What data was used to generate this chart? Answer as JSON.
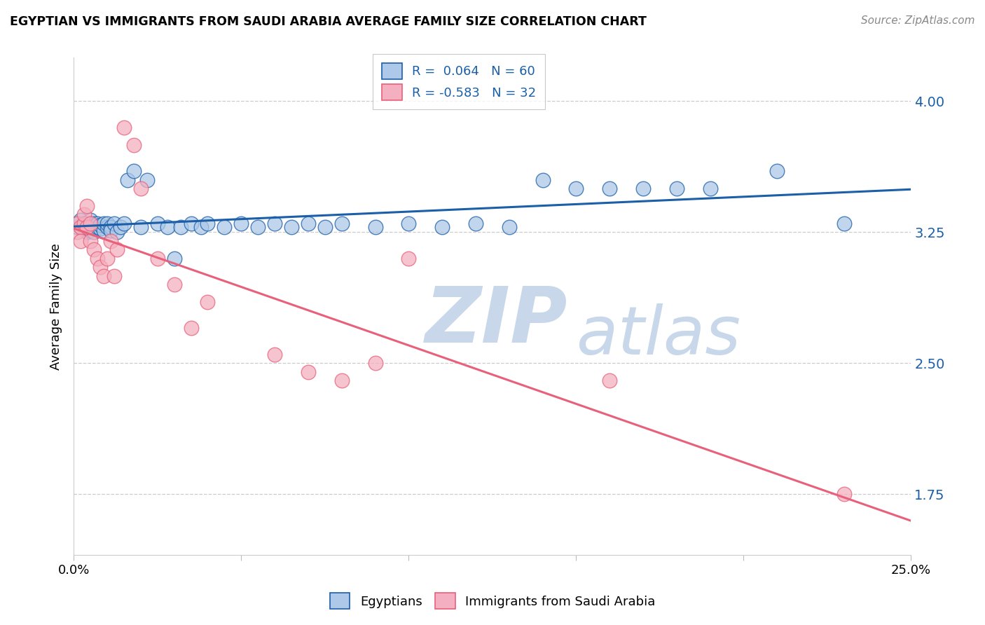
{
  "title": "EGYPTIAN VS IMMIGRANTS FROM SAUDI ARABIA AVERAGE FAMILY SIZE CORRELATION CHART",
  "source": "Source: ZipAtlas.com",
  "ylabel": "Average Family Size",
  "xlim": [
    0.0,
    0.25
  ],
  "ylim": [
    1.4,
    4.25
  ],
  "yticks": [
    1.75,
    2.5,
    3.25,
    4.0
  ],
  "ytick_labels": [
    "1.75",
    "2.50",
    "3.25",
    "4.00"
  ],
  "xticks": [
    0.0,
    0.05,
    0.1,
    0.15,
    0.2,
    0.25
  ],
  "xtick_labels": [
    "0.0%",
    "",
    "",
    "",
    "",
    "25.0%"
  ],
  "r_egyptian": 0.064,
  "n_egyptian": 60,
  "r_saudi": -0.583,
  "n_saudi": 32,
  "legend_label_1": "Egyptians",
  "legend_label_2": "Immigrants from Saudi Arabia",
  "color_egyptian": "#adc8e8",
  "color_saudi": "#f4b0c0",
  "line_color_egyptian": "#1a5fa8",
  "line_color_saudi": "#e8607a",
  "watermark_zip": "ZIP",
  "watermark_atlas": "atlas",
  "watermark_color": "#c8d8ea",
  "egyptian_x": [
    0.001,
    0.001,
    0.002,
    0.002,
    0.003,
    0.003,
    0.004,
    0.004,
    0.005,
    0.005,
    0.005,
    0.006,
    0.006,
    0.006,
    0.007,
    0.007,
    0.008,
    0.008,
    0.009,
    0.009,
    0.01,
    0.01,
    0.011,
    0.011,
    0.012,
    0.013,
    0.014,
    0.015,
    0.016,
    0.018,
    0.02,
    0.022,
    0.025,
    0.028,
    0.03,
    0.032,
    0.035,
    0.038,
    0.04,
    0.045,
    0.05,
    0.055,
    0.06,
    0.065,
    0.07,
    0.075,
    0.08,
    0.09,
    0.1,
    0.11,
    0.12,
    0.13,
    0.14,
    0.15,
    0.16,
    0.17,
    0.18,
    0.19,
    0.21,
    0.23
  ],
  "egyptian_y": [
    3.28,
    3.3,
    3.28,
    3.32,
    3.28,
    3.3,
    3.25,
    3.3,
    3.28,
    3.32,
    3.26,
    3.28,
    3.3,
    3.25,
    3.28,
    3.3,
    3.27,
    3.29,
    3.26,
    3.3,
    3.28,
    3.3,
    3.28,
    3.26,
    3.3,
    3.25,
    3.28,
    3.3,
    3.55,
    3.6,
    3.28,
    3.55,
    3.3,
    3.28,
    3.1,
    3.28,
    3.3,
    3.28,
    3.3,
    3.28,
    3.3,
    3.28,
    3.3,
    3.28,
    3.3,
    3.28,
    3.3,
    3.28,
    3.3,
    3.28,
    3.3,
    3.28,
    3.55,
    3.5,
    3.5,
    3.5,
    3.5,
    3.5,
    3.6,
    3.3
  ],
  "saudi_x": [
    0.001,
    0.001,
    0.002,
    0.002,
    0.003,
    0.003,
    0.004,
    0.004,
    0.005,
    0.005,
    0.006,
    0.007,
    0.008,
    0.009,
    0.01,
    0.011,
    0.012,
    0.013,
    0.015,
    0.018,
    0.02,
    0.025,
    0.03,
    0.035,
    0.04,
    0.06,
    0.07,
    0.08,
    0.09,
    0.1,
    0.16,
    0.23
  ],
  "saudi_y": [
    3.3,
    3.25,
    3.28,
    3.2,
    3.3,
    3.35,
    3.28,
    3.4,
    3.2,
    3.3,
    3.15,
    3.1,
    3.05,
    3.0,
    3.1,
    3.2,
    3.0,
    3.15,
    3.85,
    3.75,
    3.5,
    3.1,
    2.95,
    2.7,
    2.85,
    2.55,
    2.45,
    2.4,
    2.5,
    3.1,
    2.4,
    1.75
  ]
}
